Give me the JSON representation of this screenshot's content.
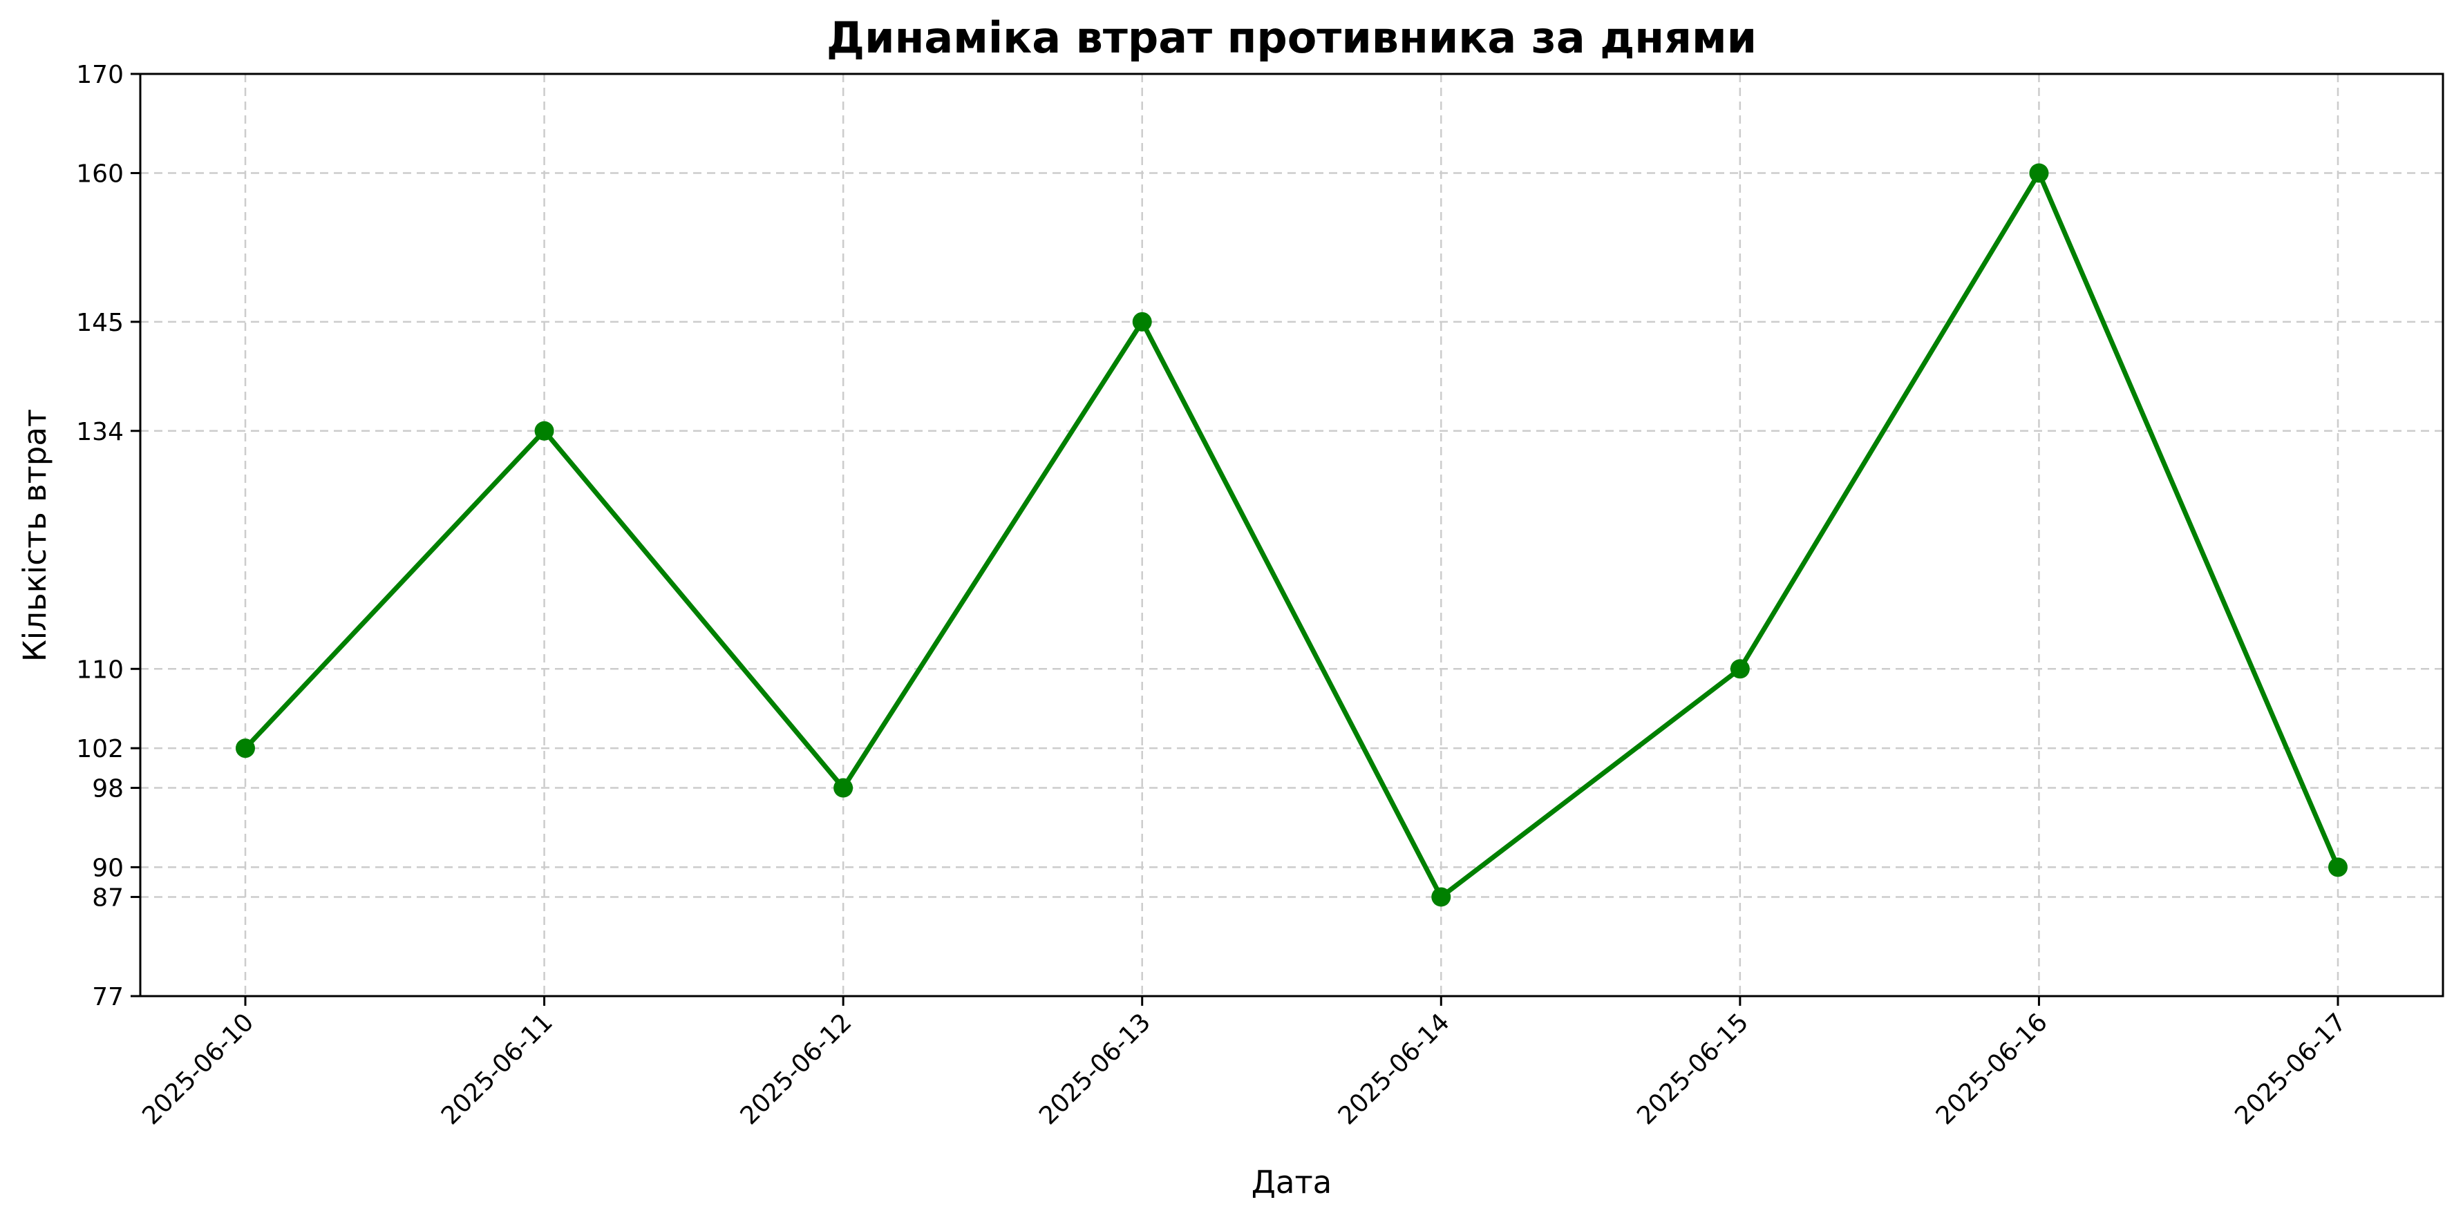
{
  "chart_data": {
    "type": "line",
    "title": "Динаміка втрат противника за днями",
    "xlabel": "Дата",
    "ylabel": "Кількість втрат",
    "categories": [
      "2025-06-10",
      "2025-06-11",
      "2025-06-12",
      "2025-06-13",
      "2025-06-14",
      "2025-06-15",
      "2025-06-16",
      "2025-06-17"
    ],
    "series": [
      {
        "values": [
          102,
          134,
          98,
          145,
          87,
          110,
          160,
          90
        ]
      }
    ],
    "ylim": [
      77,
      170
    ],
    "yticks": [
      77,
      87,
      90,
      98,
      102,
      110,
      134,
      145,
      160,
      170
    ],
    "grid": true,
    "line_color": "#008000",
    "marker": "circle"
  }
}
